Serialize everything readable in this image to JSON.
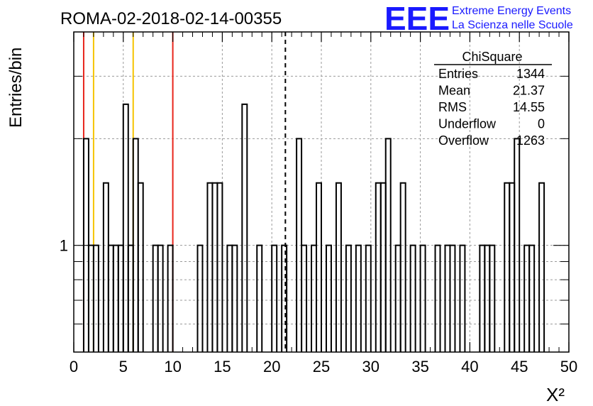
{
  "run_title": "ROMA-02-2018-02-14-00355",
  "logo": {
    "text": "EEE",
    "line1": "Extreme Energy Events",
    "line2": "La Scienza nelle Scuole",
    "color": "#1a1aff"
  },
  "stats_box": {
    "title": "ChiSquare",
    "rows": [
      {
        "label": "Entries",
        "value": "1344"
      },
      {
        "label": "Mean",
        "value": "21.37"
      },
      {
        "label": "RMS",
        "value": "14.55"
      },
      {
        "label": "Underflow",
        "value": "0"
      },
      {
        "label": "Overflow",
        "value": "1263"
      }
    ]
  },
  "chart_data": {
    "type": "histogram",
    "xlabel": "X²",
    "ylabel": "Entries/bin",
    "xlim": [
      0,
      50
    ],
    "ylim": [
      0.5,
      4
    ],
    "y_scale": "log",
    "bin_width": 0.5,
    "x_ticks": [
      0,
      5,
      10,
      15,
      20,
      25,
      30,
      35,
      40,
      45,
      50
    ],
    "y_tick_labels": [
      {
        "value": 1,
        "label": "1"
      }
    ],
    "grid": true,
    "bins": [
      {
        "x": 1.0,
        "y": 2
      },
      {
        "x": 1.5,
        "y": 1
      },
      {
        "x": 2.0,
        "y": 1
      },
      {
        "x": 3.0,
        "y": 1.5
      },
      {
        "x": 3.5,
        "y": 1
      },
      {
        "x": 4.0,
        "y": 1
      },
      {
        "x": 4.5,
        "y": 1
      },
      {
        "x": 5.0,
        "y": 2.5
      },
      {
        "x": 5.5,
        "y": 1
      },
      {
        "x": 6.0,
        "y": 2
      },
      {
        "x": 6.5,
        "y": 1.5
      },
      {
        "x": 8.0,
        "y": 1
      },
      {
        "x": 8.5,
        "y": 1
      },
      {
        "x": 9.5,
        "y": 1
      },
      {
        "x": 12.5,
        "y": 1
      },
      {
        "x": 13.5,
        "y": 1.5
      },
      {
        "x": 14.0,
        "y": 1.5
      },
      {
        "x": 14.5,
        "y": 1.5
      },
      {
        "x": 15.5,
        "y": 1
      },
      {
        "x": 16.0,
        "y": 1
      },
      {
        "x": 17.0,
        "y": 2.5
      },
      {
        "x": 18.5,
        "y": 1
      },
      {
        "x": 20.0,
        "y": 1
      },
      {
        "x": 21.0,
        "y": 1
      },
      {
        "x": 22.5,
        "y": 2
      },
      {
        "x": 23.0,
        "y": 1
      },
      {
        "x": 24.0,
        "y": 1
      },
      {
        "x": 24.5,
        "y": 1.5
      },
      {
        "x": 25.5,
        "y": 1
      },
      {
        "x": 26.5,
        "y": 1.5
      },
      {
        "x": 27.5,
        "y": 1
      },
      {
        "x": 28.5,
        "y": 1
      },
      {
        "x": 29.5,
        "y": 1
      },
      {
        "x": 30.5,
        "y": 1.5
      },
      {
        "x": 31.0,
        "y": 1.5
      },
      {
        "x": 31.5,
        "y": 2
      },
      {
        "x": 32.5,
        "y": 1
      },
      {
        "x": 33.0,
        "y": 1.5
      },
      {
        "x": 34.0,
        "y": 1
      },
      {
        "x": 35.0,
        "y": 1
      },
      {
        "x": 36.5,
        "y": 1
      },
      {
        "x": 37.5,
        "y": 1
      },
      {
        "x": 38.0,
        "y": 1
      },
      {
        "x": 39.0,
        "y": 1
      },
      {
        "x": 41.0,
        "y": 1
      },
      {
        "x": 41.5,
        "y": 1
      },
      {
        "x": 42.0,
        "y": 1
      },
      {
        "x": 43.5,
        "y": 1.5
      },
      {
        "x": 44.0,
        "y": 1.5
      },
      {
        "x": 44.5,
        "y": 2
      },
      {
        "x": 45.5,
        "y": 1
      },
      {
        "x": 46.0,
        "y": 1
      },
      {
        "x": 47.0,
        "y": 1.5
      }
    ],
    "vertical_lines": [
      {
        "x": 1.0,
        "color": "#e8251c",
        "style": "solid"
      },
      {
        "x": 2.0,
        "color": "#f5c400",
        "style": "solid"
      },
      {
        "x": 6.0,
        "color": "#f5c400",
        "style": "solid"
      },
      {
        "x": 10.0,
        "color": "#e8251c",
        "style": "solid"
      },
      {
        "x": 21.37,
        "color": "#000000",
        "style": "dashed"
      }
    ]
  }
}
